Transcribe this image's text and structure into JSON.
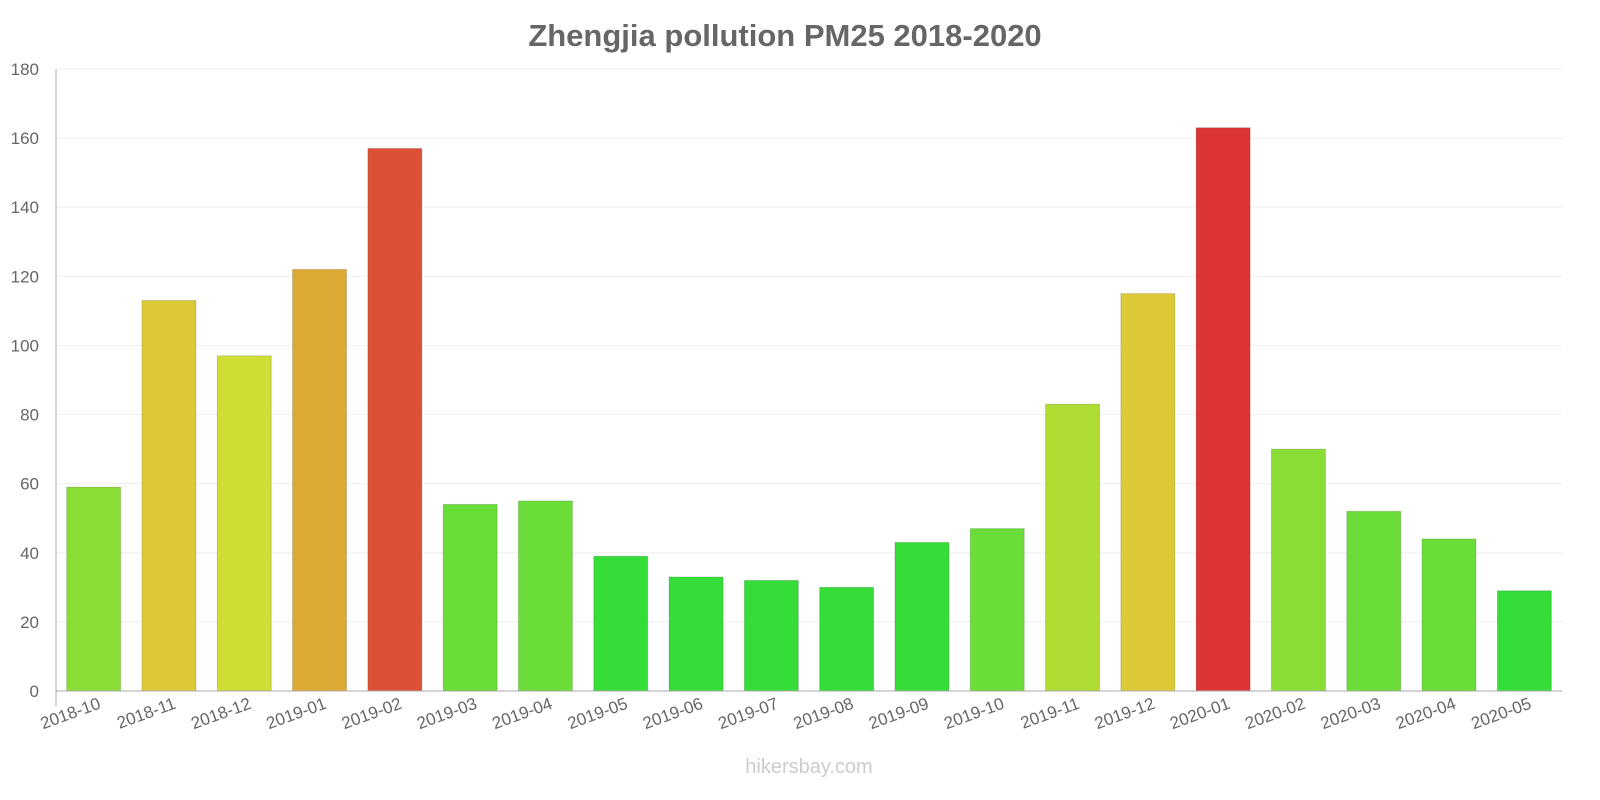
{
  "chart_data": {
    "type": "bar",
    "title": "Zhengjia pollution PM25 2018-2020",
    "xlabel": "",
    "ylabel": "",
    "ylim": [
      0,
      180
    ],
    "yticks": [
      0,
      20,
      40,
      60,
      80,
      100,
      120,
      140,
      160,
      180
    ],
    "grid": true,
    "categories": [
      "2018-10",
      "2018-11",
      "2018-12",
      "2019-01",
      "2019-02",
      "2019-03",
      "2019-04",
      "2019-05",
      "2019-06",
      "2019-07",
      "2019-08",
      "2019-09",
      "2019-10",
      "2019-11",
      "2019-12",
      "2020-01",
      "2020-02",
      "2020-03",
      "2020-04",
      "2020-05"
    ],
    "values": [
      59,
      113,
      97,
      122,
      157,
      54,
      55,
      39,
      33,
      32,
      30,
      43,
      47,
      83,
      115,
      163,
      70,
      52,
      44,
      29
    ],
    "colors": [
      "#8add35",
      "#ddc935",
      "#d0dd35",
      "#dda935",
      "#dd5035",
      "#6add38",
      "#6add38",
      "#35dd38",
      "#35dd38",
      "#35dd38",
      "#35dd38",
      "#35dd38",
      "#6add38",
      "#b0dd33",
      "#ddc935",
      "#dd3535",
      "#8add35",
      "#6add38",
      "#6add38",
      "#35dd38"
    ],
    "watermark": "hikersbay.com"
  }
}
